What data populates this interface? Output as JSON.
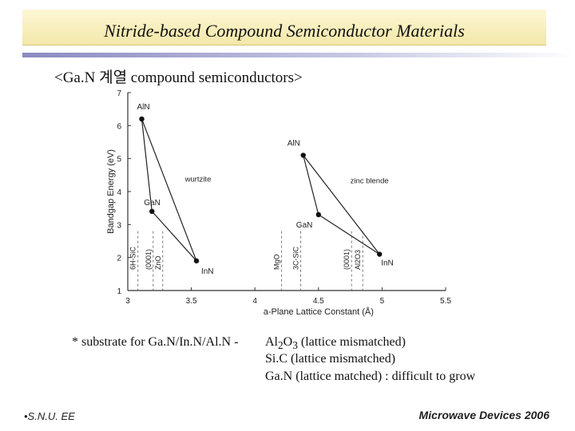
{
  "slide": {
    "title": "Nitride-based Compound Semiconductor Materials",
    "subtitle": "<Ga.N 계열 compound semiconductors>"
  },
  "chart_data": {
    "type": "line",
    "xlabel": "a-Plane Lattice Constant (Å)",
    "ylabel": "Bandgap Energy (eV)",
    "xlim": [
      3,
      5.5
    ],
    "ylim": [
      1,
      7
    ],
    "xticks": [
      "3",
      "3.5",
      "4",
      "4.5",
      "5",
      "5.5"
    ],
    "yticks": [
      "1",
      "2",
      "3",
      "4",
      "5",
      "6",
      "7"
    ],
    "grid": false,
    "series": [
      {
        "name": "wurtzite",
        "points": [
          {
            "label": "AlN",
            "x": 3.11,
            "y": 6.2
          },
          {
            "label": "GaN",
            "x": 3.19,
            "y": 3.4
          },
          {
            "label": "InN",
            "x": 3.54,
            "y": 1.9
          }
        ]
      },
      {
        "name": "zinc blende",
        "points": [
          {
            "label": "AlN",
            "x": 4.38,
            "y": 5.1
          },
          {
            "label": "GaN",
            "x": 4.5,
            "y": 3.3
          },
          {
            "label": "InN",
            "x": 4.98,
            "y": 2.1
          }
        ]
      }
    ],
    "substrates": [
      {
        "label": "6H-SiC",
        "x": 3.08
      },
      {
        "label": "(0001)",
        "x": 3.2
      },
      {
        "label": "ZnO",
        "x": 3.25
      },
      {
        "label": "3C-SiC",
        "x": 4.36
      },
      {
        "label": "MgO",
        "x": 4.21
      },
      {
        "label": "(0001)",
        "x": 4.76
      },
      {
        "label": "Al2O3",
        "x": 4.76
      }
    ]
  },
  "note": {
    "prefix": "* substrate for Ga.N/In.N/Al.N -",
    "line1_a": "Al",
    "line1_sub1": "2",
    "line1_b": "O",
    "line1_sub2": "3",
    "line1_c": " (lattice mismatched)",
    "line2": "Si.C (lattice mismatched)",
    "line3": "Ga.N (lattice matched) : difficult to grow"
  },
  "footer": {
    "left": "•S.N.U. EE",
    "right": "Microwave Devices 2006"
  }
}
